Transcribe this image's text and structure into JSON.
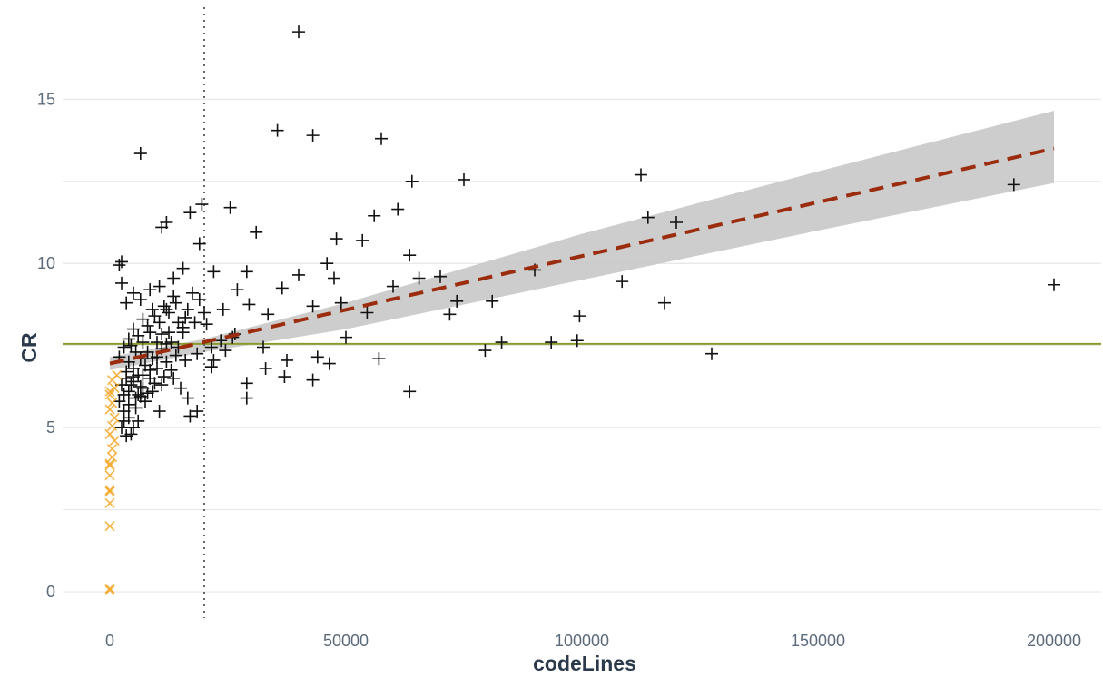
{
  "chart_data": {
    "type": "scatter",
    "title": "",
    "xlabel": "codeLines",
    "ylabel": "CR",
    "xlim": [
      -10000,
      210000
    ],
    "ylim": [
      -0.8,
      17.8
    ],
    "x_ticks": [
      0,
      50000,
      100000,
      150000,
      200000
    ],
    "x_tick_labels": [
      "0",
      "50000",
      "100000",
      "150000",
      "200000"
    ],
    "y_ticks": [
      0,
      5,
      10,
      15
    ],
    "y_tick_labels": [
      "0",
      "5",
      "10",
      "15"
    ],
    "y_minor_grid": [
      2.5,
      7.5,
      12.5
    ],
    "grid": true,
    "legend": "none",
    "colors": {
      "points": "#111111",
      "small_points": "#f5a623",
      "regression_line": "#9b2c0e",
      "confidence_band": "#c8c8c8",
      "horizontal_line": "#8a9a2a",
      "vertical_line": "#666666",
      "grid": "#e6e6e6"
    },
    "reference_lines": {
      "horizontal_y": 7.55,
      "vertical_x": 20000
    },
    "regression": {
      "start": [
        0,
        6.95
      ],
      "end": [
        200000,
        13.5
      ],
      "band": {
        "x": [
          0,
          20000,
          50000,
          100000,
          150000,
          200000
        ],
        "lower": [
          6.75,
          7.3,
          8.0,
          9.5,
          11.0,
          12.45
        ],
        "upper": [
          7.15,
          7.7,
          8.8,
          10.9,
          12.8,
          14.65
        ]
      }
    },
    "series": [
      {
        "marker": "plus",
        "points": [
          [
            40000,
            17.05
          ],
          [
            35500,
            14.05
          ],
          [
            43000,
            13.9
          ],
          [
            57500,
            13.8
          ],
          [
            6500,
            13.35
          ],
          [
            64000,
            12.5
          ],
          [
            75000,
            12.55
          ],
          [
            112500,
            12.7
          ],
          [
            191500,
            12.4
          ],
          [
            19500,
            11.8
          ],
          [
            17000,
            11.55
          ],
          [
            25500,
            11.7
          ],
          [
            61000,
            11.65
          ],
          [
            56000,
            11.45
          ],
          [
            114000,
            11.4
          ],
          [
            120000,
            11.25
          ],
          [
            12000,
            11.25
          ],
          [
            11000,
            11.1
          ],
          [
            31000,
            10.95
          ],
          [
            48000,
            10.75
          ],
          [
            53500,
            10.7
          ],
          [
            19000,
            10.6
          ],
          [
            63500,
            10.25
          ],
          [
            2500,
            10.05
          ],
          [
            2000,
            9.95
          ],
          [
            46000,
            10.0
          ],
          [
            22000,
            9.75
          ],
          [
            15500,
            9.85
          ],
          [
            13500,
            9.55
          ],
          [
            40000,
            9.65
          ],
          [
            47500,
            9.55
          ],
          [
            29000,
            9.75
          ],
          [
            90000,
            9.8
          ],
          [
            60000,
            9.3
          ],
          [
            65500,
            9.55
          ],
          [
            70000,
            9.6
          ],
          [
            108500,
            9.45
          ],
          [
            200000,
            9.35
          ],
          [
            27000,
            9.2
          ],
          [
            36500,
            9.25
          ],
          [
            49000,
            8.8
          ],
          [
            43000,
            8.7
          ],
          [
            54500,
            8.5
          ],
          [
            73500,
            8.85
          ],
          [
            81000,
            8.85
          ],
          [
            99500,
            8.4
          ],
          [
            117500,
            8.8
          ],
          [
            72000,
            8.45
          ],
          [
            24000,
            8.6
          ],
          [
            29500,
            8.75
          ],
          [
            33500,
            8.45
          ],
          [
            26500,
            7.85
          ],
          [
            50000,
            7.75
          ],
          [
            32500,
            7.45
          ],
          [
            37500,
            7.05
          ],
          [
            79500,
            7.35
          ],
          [
            83000,
            7.6
          ],
          [
            93500,
            7.6
          ],
          [
            99000,
            7.65
          ],
          [
            127500,
            7.25
          ],
          [
            57000,
            7.1
          ],
          [
            44000,
            7.15
          ],
          [
            46500,
            6.95
          ],
          [
            33000,
            6.8
          ],
          [
            21500,
            6.85
          ],
          [
            29000,
            6.35
          ],
          [
            37000,
            6.55
          ],
          [
            43000,
            6.45
          ],
          [
            63500,
            6.1
          ],
          [
            29000,
            5.9
          ],
          [
            18500,
            5.5
          ],
          [
            17000,
            5.35
          ],
          [
            10500,
            5.5
          ],
          [
            4500,
            4.8
          ],
          [
            3500,
            4.75
          ],
          [
            5000,
            5.0
          ],
          [
            6000,
            5.2
          ],
          [
            7500,
            5.8
          ],
          [
            9000,
            6.1
          ],
          [
            11000,
            6.3
          ],
          [
            13500,
            6.5
          ],
          [
            15000,
            6.2
          ],
          [
            16500,
            5.9
          ],
          [
            3000,
            5.5
          ],
          [
            4000,
            5.7
          ],
          [
            5500,
            5.9
          ],
          [
            7000,
            6.2
          ],
          [
            8500,
            6.5
          ],
          [
            10000,
            6.8
          ],
          [
            12000,
            7.0
          ],
          [
            14000,
            7.2
          ],
          [
            3000,
            6.0
          ],
          [
            4500,
            6.3
          ],
          [
            6000,
            6.6
          ],
          [
            7500,
            6.9
          ],
          [
            9000,
            7.1
          ],
          [
            11000,
            7.4
          ],
          [
            13000,
            7.6
          ],
          [
            15500,
            7.9
          ],
          [
            18000,
            8.2
          ],
          [
            20000,
            8.5
          ],
          [
            3500,
            6.5
          ],
          [
            5000,
            6.8
          ],
          [
            6500,
            7.1
          ],
          [
            8000,
            7.3
          ],
          [
            10000,
            7.6
          ],
          [
            12500,
            7.9
          ],
          [
            14500,
            8.2
          ],
          [
            16500,
            8.6
          ],
          [
            19000,
            8.9
          ],
          [
            4000,
            7.0
          ],
          [
            5500,
            7.3
          ],
          [
            7000,
            7.6
          ],
          [
            8500,
            7.9
          ],
          [
            10500,
            8.2
          ],
          [
            12500,
            8.5
          ],
          [
            14000,
            8.8
          ],
          [
            17500,
            9.1
          ],
          [
            4500,
            7.5
          ],
          [
            6000,
            7.8
          ],
          [
            8000,
            8.1
          ],
          [
            9500,
            8.4
          ],
          [
            11500,
            8.7
          ],
          [
            13500,
            9.0
          ],
          [
            5000,
            8.0
          ],
          [
            7000,
            8.3
          ],
          [
            9000,
            8.6
          ],
          [
            5000,
            9.1
          ],
          [
            2500,
            9.4
          ],
          [
            3500,
            8.8
          ],
          [
            6500,
            8.9
          ],
          [
            8500,
            9.2
          ],
          [
            10500,
            9.3
          ],
          [
            12000,
            8.6
          ],
          [
            3000,
            5.2
          ],
          [
            4000,
            5.3
          ],
          [
            5500,
            5.6
          ],
          [
            6500,
            5.95
          ],
          [
            8000,
            6.05
          ],
          [
            9500,
            6.35
          ],
          [
            11500,
            6.55
          ],
          [
            13000,
            6.75
          ],
          [
            16000,
            7.05
          ],
          [
            18500,
            7.25
          ],
          [
            21500,
            7.45
          ],
          [
            23500,
            7.65
          ],
          [
            26000,
            7.75
          ],
          [
            2500,
            6.3
          ],
          [
            3500,
            6.7
          ],
          [
            4000,
            6.1
          ],
          [
            5000,
            6.4
          ],
          [
            6000,
            6.0
          ],
          [
            7000,
            6.6
          ],
          [
            2000,
            5.8
          ],
          [
            2500,
            5.0
          ],
          [
            20500,
            8.15
          ],
          [
            22000,
            7.05
          ],
          [
            24500,
            7.35
          ],
          [
            16000,
            8.35
          ],
          [
            11000,
            7.85
          ],
          [
            2000,
            7.15
          ],
          [
            3000,
            7.45
          ],
          [
            4000,
            7.7
          ],
          [
            5000,
            6.55
          ],
          [
            6500,
            6.25
          ],
          [
            8500,
            6.75
          ],
          [
            10000,
            7.15
          ],
          [
            12000,
            7.55
          ],
          [
            14500,
            7.45
          ],
          [
            15500,
            8.05
          ]
        ]
      },
      {
        "marker": "x",
        "points": [
          [
            0,
            0.1
          ],
          [
            0,
            0.05
          ],
          [
            0,
            2.0
          ],
          [
            0,
            2.7
          ],
          [
            0,
            3.05
          ],
          [
            0,
            3.1
          ],
          [
            0,
            3.55
          ],
          [
            0,
            3.85
          ],
          [
            0,
            3.9
          ],
          [
            500,
            4.1
          ],
          [
            500,
            4.35
          ],
          [
            1000,
            4.6
          ],
          [
            0,
            4.8
          ],
          [
            500,
            5.05
          ],
          [
            1000,
            5.3
          ],
          [
            0,
            5.55
          ],
          [
            500,
            5.75
          ],
          [
            0,
            6.0
          ],
          [
            1000,
            6.2
          ],
          [
            500,
            6.45
          ],
          [
            1500,
            6.6
          ],
          [
            0,
            6.1
          ]
        ]
      }
    ]
  }
}
